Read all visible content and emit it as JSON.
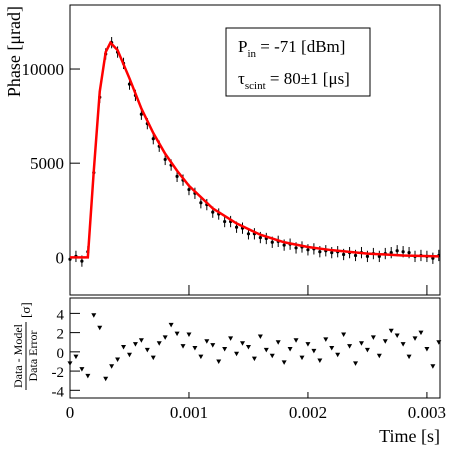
{
  "chart_data": [
    {
      "type": "scatter",
      "ylabel": "Phase [μrad]",
      "xlim": [
        0,
        0.00311
      ],
      "ylim": [
        -2000,
        13400
      ],
      "xticks": [
        0,
        0.001,
        0.002,
        0.003
      ],
      "yticks": [
        0,
        5000,
        10000
      ],
      "legend_box": [
        [
          "P",
          "in",
          " = -71 [dBm]"
        ],
        [
          "τ",
          "scint",
          " = 80±1 [μs]"
        ]
      ],
      "series": [
        {
          "type": "scatter",
          "color": "#000000",
          "x": [
            0,
            5e-05,
            0.0001,
            0.00015,
            0.0002,
            0.00025,
            0.0003,
            0.00035,
            0.0004,
            0.00045,
            0.0005,
            0.00055,
            0.0006,
            0.00065,
            0.0007,
            0.00075,
            0.0008,
            0.00085,
            0.0009,
            0.00095,
            0.001,
            0.00105,
            0.0011,
            0.00115,
            0.0012,
            0.00125,
            0.0013,
            0.00135,
            0.0014,
            0.00145,
            0.0015,
            0.00155,
            0.0016,
            0.00165,
            0.0017,
            0.00175,
            0.0018,
            0.00185,
            0.0019,
            0.00195,
            0.002,
            0.00205,
            0.0021,
            0.00215,
            0.0022,
            0.00225,
            0.0023,
            0.00235,
            0.0024,
            0.00245,
            0.0025,
            0.00255,
            0.0026,
            0.00265,
            0.0027,
            0.00275,
            0.0028,
            0.00285,
            0.0029,
            0.00295,
            0.003,
            0.00305,
            0.0031
          ],
          "values": [
            -100,
            50,
            -200,
            300,
            4500,
            8500,
            10800,
            11400,
            10900,
            10300,
            9200,
            8600,
            7600,
            7100,
            6300,
            5900,
            5200,
            4900,
            4300,
            4100,
            3600,
            3400,
            2900,
            2800,
            2400,
            2300,
            1900,
            1900,
            1600,
            1550,
            1250,
            1250,
            1050,
            1000,
            800,
            850,
            650,
            700,
            500,
            550,
            400,
            450,
            300,
            350,
            250,
            300,
            150,
            250,
            100,
            250,
            50,
            200,
            50,
            200,
            250,
            350,
            300,
            250,
            50,
            100,
            50,
            -50,
            100
          ],
          "errors": [
            300,
            300,
            300,
            300,
            300,
            300,
            300,
            300,
            300,
            300,
            300,
            300,
            300,
            300,
            300,
            300,
            300,
            300,
            300,
            300,
            300,
            300,
            300,
            300,
            300,
            300,
            300,
            300,
            300,
            300,
            300,
            300,
            300,
            300,
            300,
            300,
            300,
            300,
            300,
            300,
            300,
            300,
            300,
            300,
            300,
            300,
            300,
            300,
            300,
            300,
            300,
            300,
            300,
            300,
            300,
            300,
            300,
            300,
            300,
            300,
            300,
            300,
            300
          ]
        },
        {
          "type": "line",
          "color": "#ff0000",
          "x": [
            0,
            0.00015,
            0.0002,
            0.00025,
            0.0003,
            0.00034,
            0.0004,
            0.0005,
            0.0006,
            0.0007,
            0.0008,
            0.0009,
            0.001,
            0.0012,
            0.0014,
            0.0016,
            0.0018,
            0.002,
            0.0022,
            0.0025,
            0.0028,
            0.0031
          ],
          "values": [
            0,
            0,
            4600,
            8800,
            10900,
            11400,
            11000,
            9500,
            7900,
            6600,
            5500,
            4600,
            3800,
            2600,
            1800,
            1200,
            800,
            550,
            380,
            200,
            100,
            50
          ]
        }
      ]
    },
    {
      "type": "scatter",
      "xlabel": "Time [s]",
      "ylabel": {
        "numerator": "Data - Model",
        "denominator": "Data Error",
        "unit": "[σ]"
      },
      "xlim": [
        0,
        0.00311
      ],
      "ylim": [
        -4.8,
        5.6
      ],
      "xticks": [
        0,
        0.001,
        0.002,
        0.003
      ],
      "yticks": [
        -4,
        -2,
        0,
        2,
        4
      ],
      "series": [
        {
          "type": "scatter",
          "marker": "triangle-down",
          "color": "#000000",
          "x": [
            0,
            5e-05,
            0.0001,
            0.00015,
            0.0002,
            0.00025,
            0.0003,
            0.00035,
            0.0004,
            0.00045,
            0.0005,
            0.00055,
            0.0006,
            0.00065,
            0.0007,
            0.00075,
            0.0008,
            0.00085,
            0.0009,
            0.00095,
            0.001,
            0.00105,
            0.0011,
            0.00115,
            0.0012,
            0.00125,
            0.0013,
            0.00135,
            0.0014,
            0.00145,
            0.0015,
            0.00155,
            0.0016,
            0.00165,
            0.0017,
            0.00175,
            0.0018,
            0.00185,
            0.0019,
            0.00195,
            0.002,
            0.00205,
            0.0021,
            0.00215,
            0.0022,
            0.00225,
            0.0023,
            0.00235,
            0.0024,
            0.00245,
            0.0025,
            0.00255,
            0.0026,
            0.00265,
            0.0027,
            0.00275,
            0.0028,
            0.00285,
            0.0029,
            0.00295,
            0.003,
            0.00305,
            0.0031
          ],
          "values": [
            -1.2,
            -0.5,
            -1.8,
            -2.5,
            3.8,
            2.5,
            -2.8,
            -1.5,
            -0.8,
            0.5,
            -0.3,
            0.8,
            1.2,
            0.2,
            -0.6,
            0.9,
            1.5,
            2.8,
            1.9,
            0.6,
            1.8,
            0.4,
            -0.5,
            1.1,
            0.7,
            -1.0,
            0.3,
            1.4,
            -0.2,
            0.9,
            0.5,
            -0.7,
            1.6,
            0.2,
            -0.4,
            1.0,
            -1.1,
            0.3,
            1.2,
            -0.6,
            0.8,
            0.1,
            -0.9,
            1.3,
            0.4,
            -0.3,
            1.8,
            0.6,
            -1.2,
            0.9,
            0.2,
            1.5,
            -0.4,
            1.1,
            2.2,
            1.7,
            0.8,
            -0.5,
            1.4,
            2.0,
            0.3,
            -1.5,
            1.0
          ]
        }
      ]
    }
  ]
}
